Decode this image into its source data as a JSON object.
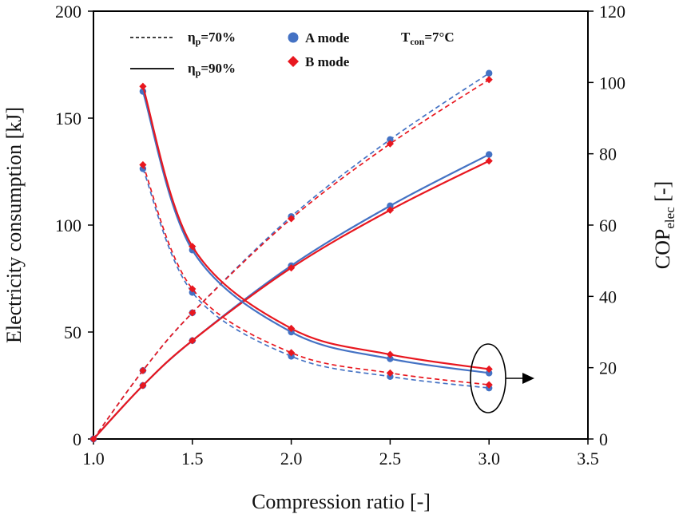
{
  "chart_data": {
    "type": "line",
    "xlabel": "Compression ratio [-]",
    "ylabel_left": "Electricity consumption [kJ]",
    "ylabel_right_main": "COP",
    "ylabel_right_sub": "elec",
    "ylabel_right_tail": " [-]",
    "xlim": [
      1.0,
      3.5
    ],
    "ylim_left": [
      0,
      200
    ],
    "ylim_right": [
      0,
      120
    ],
    "x_ticks": [
      "1.0",
      "1.5",
      "2.0",
      "2.5",
      "3.0",
      "3.5"
    ],
    "y_left_ticks": [
      "0",
      "50",
      "100",
      "150",
      "200"
    ],
    "y_right_ticks": [
      "0",
      "20",
      "40",
      "60",
      "80",
      "100",
      "120"
    ],
    "grid": false,
    "legend": {
      "eta70_main": "η",
      "eta70_sub": "p",
      "eta70_tail": "=70%",
      "eta90_main": "η",
      "eta90_sub": "p",
      "eta90_tail": "=90%",
      "a_mode": "A mode",
      "b_mode": "B mode",
      "tcon_main": "T",
      "tcon_sub": "con",
      "tcon_tail": "=7°C"
    },
    "colors": {
      "a_mode": "#4472C4",
      "b_mode": "#E8171F"
    },
    "series": [
      {
        "mode": "A",
        "axis": "left",
        "eta": "70%",
        "style": "dashed",
        "x": [
          1.0,
          1.25,
          1.5,
          2.0,
          2.5,
          3.0
        ],
        "y": [
          0,
          32,
          59,
          104,
          140,
          171
        ]
      },
      {
        "mode": "B",
        "axis": "left",
        "eta": "70%",
        "style": "dashed",
        "x": [
          1.0,
          1.25,
          1.5,
          2.0,
          2.5,
          3.0
        ],
        "y": [
          0,
          32,
          59,
          103,
          138,
          168
        ]
      },
      {
        "mode": "A",
        "axis": "left",
        "eta": "90%",
        "style": "solid",
        "x": [
          1.0,
          1.25,
          1.5,
          2.0,
          2.5,
          3.0
        ],
        "y": [
          0,
          25,
          46,
          81,
          109,
          133
        ]
      },
      {
        "mode": "B",
        "axis": "left",
        "eta": "90%",
        "style": "solid",
        "x": [
          1.0,
          1.25,
          1.5,
          2.0,
          2.5,
          3.0
        ],
        "y": [
          0,
          25,
          46,
          80,
          107,
          130
        ]
      },
      {
        "mode": "A",
        "axis": "right",
        "eta": "90%",
        "style": "solid",
        "x": [
          1.25,
          1.5,
          2.0,
          2.5,
          3.0
        ],
        "y": [
          97.5,
          53,
          30,
          22.5,
          18.5
        ]
      },
      {
        "mode": "B",
        "axis": "right",
        "eta": "90%",
        "style": "solid",
        "x": [
          1.25,
          1.5,
          2.0,
          2.5,
          3.0
        ],
        "y": [
          98.9,
          54,
          31,
          23.7,
          19.6
        ]
      },
      {
        "mode": "A",
        "axis": "right",
        "eta": "70%",
        "style": "dashed",
        "x": [
          1.25,
          1.5,
          2.0,
          2.5,
          3.0
        ],
        "y": [
          75.8,
          41.1,
          23.2,
          17.5,
          14.3
        ]
      },
      {
        "mode": "B",
        "axis": "right",
        "eta": "70%",
        "style": "dashed",
        "x": [
          1.25,
          1.5,
          2.0,
          2.5,
          3.0
        ],
        "y": [
          76.9,
          42.1,
          24.2,
          18.5,
          15.2
        ]
      }
    ]
  }
}
